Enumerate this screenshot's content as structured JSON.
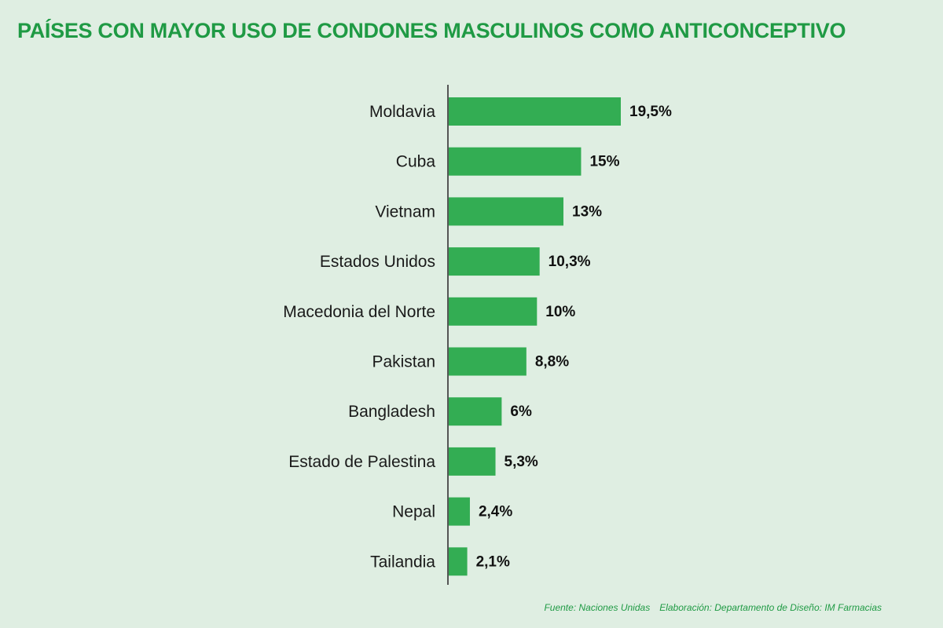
{
  "title": "PAÍSES CON MAYOR USO DE CONDONES MASCULINOS COMO ANTICONCEPTIVO",
  "footer": {
    "source": "Fuente: Naciones Unidas",
    "credit": "Elaboración: Departamento de Diseño: IM Farmacias"
  },
  "colors": {
    "background": "#dfeee2",
    "bar": "#33ad53",
    "title": "#1f9a44",
    "axis": "#555555"
  },
  "chart_data": {
    "type": "bar",
    "orientation": "horizontal",
    "categories": [
      "Moldavia",
      "Cuba",
      "Vietnam",
      "Estados Unidos",
      "Macedonia del Norte",
      "Pakistan",
      "Bangladesh",
      "Estado de Palestina",
      "Nepal",
      "Tailandia"
    ],
    "values": [
      19.5,
      15,
      13,
      10.3,
      10,
      8.8,
      6,
      5.3,
      2.4,
      2.1
    ],
    "value_labels": [
      "19,5%",
      "15%",
      "13%",
      "10,3%",
      "10%",
      "8,8%",
      "6%",
      "5,3%",
      "2,4%",
      "2,1%"
    ],
    "xlim": [
      0,
      19.5
    ],
    "grid": false,
    "legend": "none"
  }
}
